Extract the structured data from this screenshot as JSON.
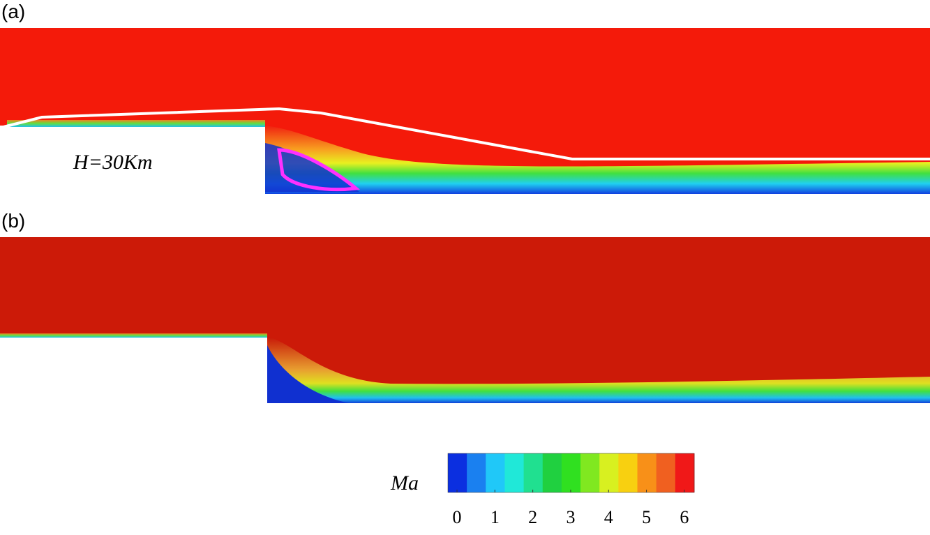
{
  "panels": [
    {
      "label": "(a)",
      "annotation": "H=30Km"
    },
    {
      "label": "(b)"
    }
  ],
  "colorbar": {
    "title": "Ma",
    "range": [
      -0.24,
      6.26
    ],
    "ticks": [
      0,
      1,
      2,
      3,
      4,
      5,
      6
    ],
    "colors": [
      "#0b2fe0",
      "#1a80f0",
      "#20c8f8",
      "#20e8d8",
      "#20e090",
      "#20d040",
      "#30e020",
      "#80e820",
      "#d8f020",
      "#f8d010",
      "#f89018",
      "#f06020",
      "#f01818"
    ]
  }
}
